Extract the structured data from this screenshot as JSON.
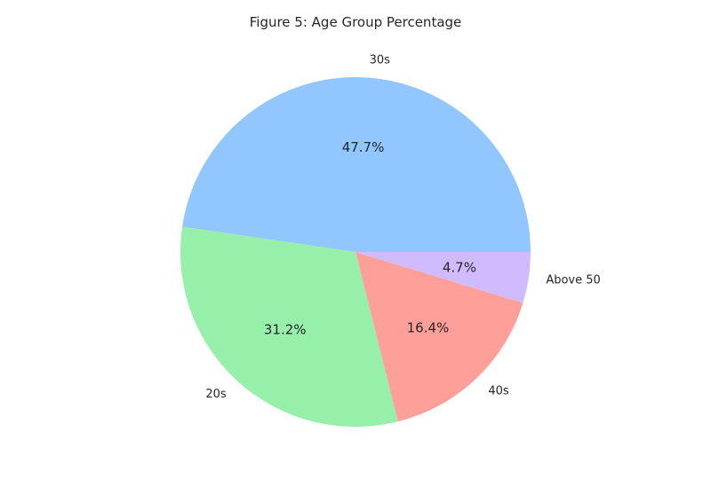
{
  "chart_data": {
    "type": "pie",
    "title": "Figure 5: Age Group Percentage",
    "slices": [
      {
        "label": "30s",
        "value": 47.7,
        "pct_label": "47.7%",
        "color": "#92c6ff"
      },
      {
        "label": "20s",
        "value": 31.2,
        "pct_label": "31.2%",
        "color": "#97f0aa"
      },
      {
        "label": "40s",
        "value": 16.4,
        "pct_label": "16.4%",
        "color": "#ff9f9a"
      },
      {
        "label": "Above 50",
        "value": 4.7,
        "pct_label": "4.7%",
        "color": "#d0bbff"
      }
    ],
    "start_angle_deg": 0,
    "direction": "counterclockwise",
    "legend": "none"
  }
}
